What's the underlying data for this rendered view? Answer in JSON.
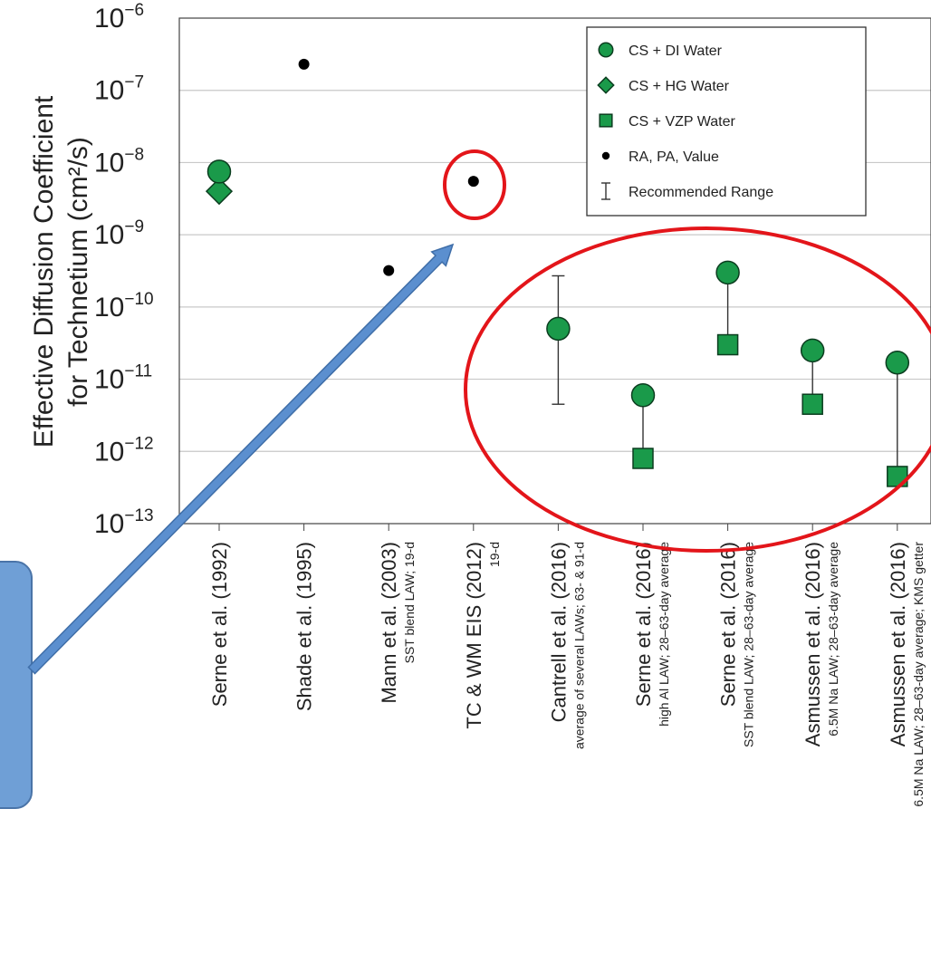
{
  "colors": {
    "marker_fill": "#1a9a4a",
    "marker_stroke": "#0b3d1f",
    "ra_pa_dot": "#000000",
    "range_bar": "#333333",
    "grid": "#c8c8c8",
    "annotation_red": "#e3151a",
    "arrow_blue": "#5b8fcf",
    "callout_box": "#6f9fd6"
  },
  "chart_data": {
    "type": "scatter",
    "yscale": "log",
    "ylim_exponent": [
      -13,
      -6
    ],
    "ylabel": [
      "Effective Diffusion Coefficient",
      "for Technetium (cm²/s)"
    ],
    "yticks": [
      {
        "base": "10",
        "exp": "−6",
        "value_exponent": -6
      },
      {
        "base": "10",
        "exp": "−7",
        "value_exponent": -7
      },
      {
        "base": "10",
        "exp": "−8",
        "value_exponent": -8
      },
      {
        "base": "10",
        "exp": "−9",
        "value_exponent": -9
      },
      {
        "base": "10",
        "exp": "−10",
        "value_exponent": -10
      },
      {
        "base": "10",
        "exp": "−11",
        "value_exponent": -11
      },
      {
        "base": "10",
        "exp": "−12",
        "value_exponent": -12
      },
      {
        "base": "10",
        "exp": "−13",
        "value_exponent": -13
      }
    ],
    "categories": [
      {
        "main": "Serne et al. (1992)",
        "sub": ""
      },
      {
        "main": "Shade et al. (1995)",
        "sub": ""
      },
      {
        "main": "Mann et al. (2003)",
        "sub": "SST blend LAW; 19-d"
      },
      {
        "main": "TC & WM EIS (2012)",
        "sub": "19-d"
      },
      {
        "main": "Cantrell et al. (2016)",
        "sub": "average of several LAWs; 63- & 91-d"
      },
      {
        "main": "Serne et al. (2016)",
        "sub": "high Al LAW; 28–63-day average"
      },
      {
        "main": "Serne et al. (2016)",
        "sub": "SST blend LAW; 28–63-day average"
      },
      {
        "main": "Asmussen et al. (2016)",
        "sub": "6.5M Na LAW; 28–63-day average"
      },
      {
        "main": "Asmussen et al. (2016)",
        "sub": "6.5M Na LAW; 28–63-day average; KMS getter"
      }
    ],
    "series": [
      {
        "name": "CS + DI Water",
        "marker": "circle",
        "points": [
          {
            "cat": 0,
            "y": 7.5e-09
          },
          {
            "cat": 4,
            "y": 5e-11
          },
          {
            "cat": 5,
            "y": 6e-12
          },
          {
            "cat": 6,
            "y": 3e-10
          },
          {
            "cat": 7,
            "y": 2.5e-11
          },
          {
            "cat": 8,
            "y": 1.7e-11
          }
        ]
      },
      {
        "name": "CS + HG Water",
        "marker": "diamond",
        "points": [
          {
            "cat": 0,
            "y": 4e-09
          }
        ]
      },
      {
        "name": "CS + VZP Water",
        "marker": "square",
        "points": [
          {
            "cat": 5,
            "y": 8e-13
          },
          {
            "cat": 6,
            "y": 3e-11
          },
          {
            "cat": 7,
            "y": 4.5e-12
          },
          {
            "cat": 8,
            "y": 4.5e-13
          }
        ]
      },
      {
        "name": "RA, PA,  Value",
        "marker": "dot",
        "points": [
          {
            "cat": 1,
            "y": 2.3e-07
          },
          {
            "cat": 2,
            "y": 3.2e-10
          },
          {
            "cat": 3,
            "y": 5.5e-09
          }
        ]
      }
    ],
    "connectors": [
      {
        "cat": 5,
        "y_low": 8e-13,
        "y_high": 6e-12
      },
      {
        "cat": 6,
        "y_low": 3e-11,
        "y_high": 3e-10
      },
      {
        "cat": 7,
        "y_low": 4.5e-12,
        "y_high": 2.5e-11
      },
      {
        "cat": 8,
        "y_low": 4.5e-13,
        "y_high": 1.7e-11
      }
    ],
    "ranges": [
      {
        "name": "Recommended Range",
        "cat": 4,
        "y_low": 4.5e-12,
        "y_high": 2.7e-10
      }
    ],
    "legend": {
      "placement": "top-right",
      "entries": [
        {
          "marker": "circle",
          "label": "CS + DI Water"
        },
        {
          "marker": "diamond",
          "label": "CS + HG Water"
        },
        {
          "marker": "square",
          "label": "CS + VZP Water"
        },
        {
          "marker": "dot",
          "label": "RA, PA,  Value"
        },
        {
          "marker": "range",
          "label": "Recommended Range"
        }
      ]
    },
    "grid": true
  }
}
